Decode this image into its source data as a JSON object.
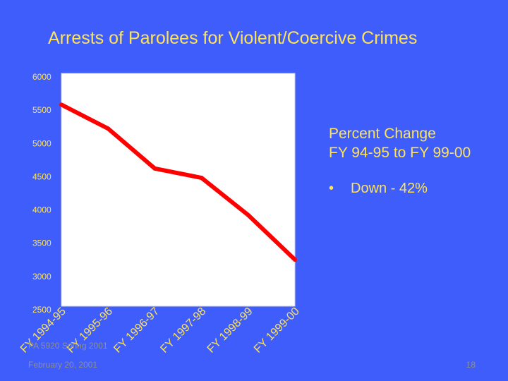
{
  "chart_data": {
    "type": "line",
    "title": "Arrests of Parolees for Violent/Coercive Crimes",
    "categories": [
      "FY 1994-95",
      "FY 1995-96",
      "FY 1996-97",
      "FY 1997-98",
      "FY 1998-99",
      "FY 1999-00"
    ],
    "series": [
      {
        "values": [
          5530,
          5170,
          4570,
          4430,
          3870,
          3200
        ]
      }
    ],
    "yticks": [
      "6000",
      "5500",
      "5000",
      "4500",
      "4000",
      "3500",
      "3000",
      "2500"
    ],
    "ylim": [
      2500,
      6000
    ],
    "grid": false,
    "colors": {
      "line": "#ff0000",
      "axis_text": "#fde35a",
      "plot_background": "#ffffff",
      "page_background": "#3f5dfb"
    }
  },
  "annotation": {
    "heading_lines": [
      "Percent Change",
      "FY 94-95 to FY 99-00"
    ],
    "bullet": "•",
    "bullet_text": "Down - 42%"
  },
  "footer": {
    "course": "PA 5920 Spring 2001",
    "date": "February 20, 2001",
    "page": "18"
  }
}
